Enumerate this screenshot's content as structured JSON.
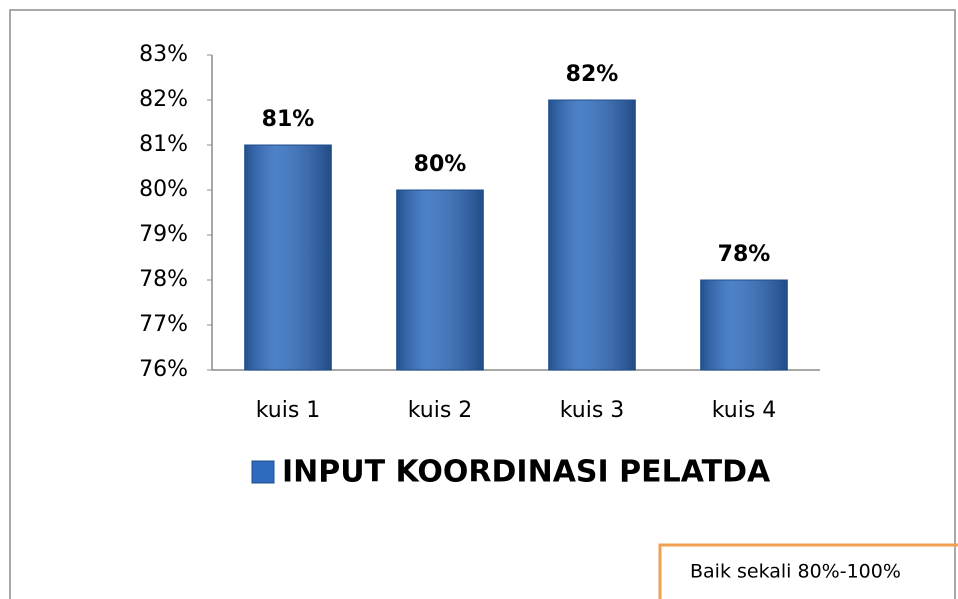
{
  "chart_data": {
    "type": "bar",
    "categories": [
      "kuis 1",
      "kuis 2",
      "kuis 3",
      "kuis 4"
    ],
    "series": [
      {
        "name": "INPUT KOORDINASI PELATDA",
        "color": "#2e6bbf",
        "values": [
          81,
          80,
          82,
          78
        ],
        "value_labels": [
          "81%",
          "80%",
          "82%",
          "78%"
        ]
      }
    ],
    "ylim": [
      76,
      83
    ],
    "yticks": [
      {
        "value": 76,
        "label": "76%"
      },
      {
        "value": 77,
        "label": "77%"
      },
      {
        "value": 78,
        "label": "78%"
      },
      {
        "value": 79,
        "label": "79%"
      },
      {
        "value": 80,
        "label": "80%"
      },
      {
        "value": 81,
        "label": "81%"
      },
      {
        "value": 82,
        "label": "82%"
      },
      {
        "value": 83,
        "label": "83%"
      }
    ],
    "grid": false,
    "legend": "bottom",
    "annotation": "Baik sekali 80%-100%"
  }
}
